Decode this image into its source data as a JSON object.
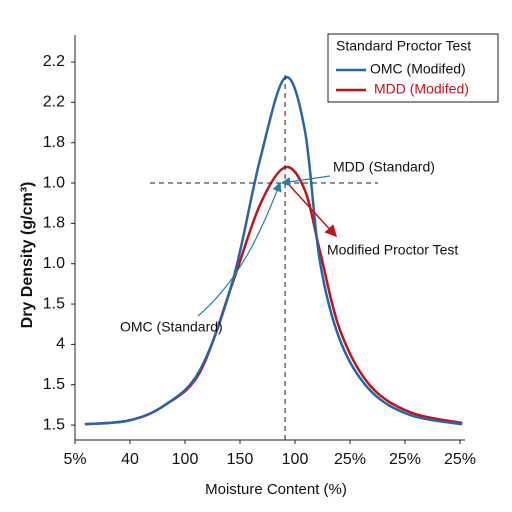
{
  "chart_data": {
    "type": "line",
    "x_label": "Moisture Content (%)",
    "y_label": "Dry Density (g/cm³)",
    "xlim": [
      0,
      7
    ],
    "xticks": [
      {
        "value": 0,
        "label": "5%"
      },
      {
        "value": 1,
        "label": "40"
      },
      {
        "value": 2,
        "label": "100"
      },
      {
        "value": 3,
        "label": "150"
      },
      {
        "value": 4,
        "label": "100"
      },
      {
        "value": 5,
        "label": "25%"
      },
      {
        "value": 6,
        "label": "25%"
      },
      {
        "value": 7,
        "label": "25%"
      }
    ],
    "ylim": [
      -0.37,
      9.67
    ],
    "yticks": [
      {
        "value": 0,
        "label": "1.5"
      },
      {
        "value": 1,
        "label": "1.5"
      },
      {
        "value": 2,
        "label": "4"
      },
      {
        "value": 3,
        "label": "1.5"
      },
      {
        "value": 4,
        "label": "1.0"
      },
      {
        "value": 5,
        "label": "1.8"
      },
      {
        "value": 6,
        "label": "1.0"
      },
      {
        "value": 7,
        "label": "1.8"
      },
      {
        "value": 8,
        "label": "2.2"
      },
      {
        "value": 9,
        "label": "2.2"
      }
    ],
    "legend_title": "Standard Proctor Test",
    "legend_position": "upper right",
    "x": [
      0.18,
      1.0,
      1.64,
      2.27,
      2.87,
      3.36,
      3.82,
      4.18,
      4.45,
      4.82,
      5.36,
      6.09,
      7.04
    ],
    "series": [
      {
        "name": "OMC (Modifed)",
        "color": "#2a64a8",
        "values": [
          0.02,
          0.12,
          0.5,
          1.36,
          3.59,
          6.56,
          8.61,
          7.3,
          4.08,
          2.1,
          0.87,
          0.25,
          0.02
        ]
      },
      {
        "name": "MDD (Modifed)",
        "color": "#c0141c",
        "values": [
          0.02,
          0.12,
          0.5,
          1.31,
          3.54,
          5.45,
          6.39,
          5.82,
          4.33,
          2.35,
          0.99,
          0.32,
          0.05
        ]
      }
    ],
    "annotations": {
      "mdd_standard": "MDD (Standard)",
      "modified_proctor": "Modified Proctor Test",
      "omc_standard": "OMC (Standard)"
    }
  }
}
